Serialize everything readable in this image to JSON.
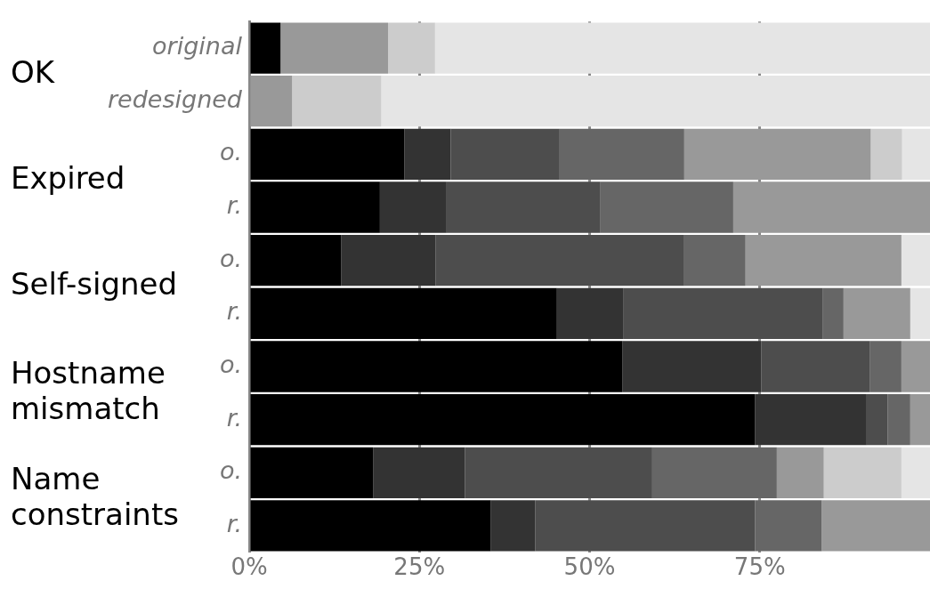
{
  "chart_data": {
    "type": "bar",
    "orientation": "horizontal",
    "stacked": true,
    "legend": false,
    "grid": "x",
    "categories": [
      "original",
      "redesigned",
      "o.",
      "r.",
      "o.",
      "r.",
      "o.",
      "r.",
      "o.",
      "r."
    ],
    "annotations": [
      "OK",
      "Expired",
      "Self-signed",
      "Hostname\nmismatch",
      "Name\nconstraints"
    ],
    "xlim": [
      0,
      100
    ],
    "xticks": [
      {
        "value": 0,
        "label": "0%"
      },
      {
        "value": 25,
        "label": "25%"
      },
      {
        "value": 50,
        "label": "50%"
      },
      {
        "value": 75,
        "label": "75%"
      }
    ],
    "series": [
      {
        "color": "#000000",
        "values": [
          4.6,
          0,
          22.8,
          19.2,
          13.5,
          45.2,
          54.8,
          74.3,
          18.2,
          35.5
        ]
      },
      {
        "color": "#333333",
        "values": [
          0,
          0,
          6.8,
          9.8,
          13.9,
          9.8,
          20.4,
          16.4,
          13.5,
          6.5
        ]
      },
      {
        "color": "#4d4d4d",
        "values": [
          0,
          0,
          16.0,
          22.6,
          36.5,
          29.2,
          16.0,
          3.1,
          27.5,
          32.3
        ]
      },
      {
        "color": "#666666",
        "values": [
          0,
          0,
          18.3,
          19.5,
          9.0,
          3.1,
          4.6,
          3.3,
          18.3,
          9.8
        ]
      },
      {
        "color": "#999999",
        "values": [
          15.8,
          6.3,
          27.4,
          28.9,
          22.9,
          9.8,
          4.2,
          2.9,
          6.9,
          15.9
        ]
      },
      {
        "color": "#cccccc",
        "values": [
          6.9,
          13.1,
          4.6,
          0,
          0,
          0,
          0,
          0,
          11.4,
          0
        ]
      },
      {
        "color": "#e5e5e5",
        "values": [
          72.7,
          80.6,
          4.1,
          0,
          4.2,
          2.9,
          0,
          0,
          4.2,
          0
        ]
      }
    ]
  }
}
